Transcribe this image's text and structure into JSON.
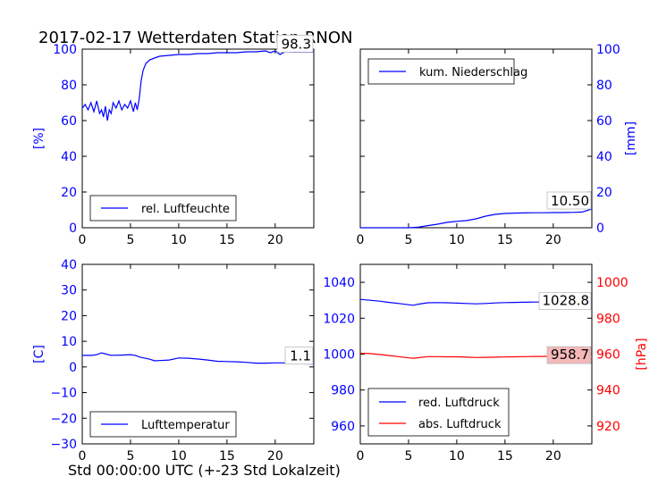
{
  "title": "2017-02-17 Wetterdaten Station RNON",
  "footer_xlabel": "Std 00:00:00 UTC (+-23 Std Lokalzeit)",
  "colors": {
    "blue": "#0000ff",
    "red": "#ff0000",
    "black": "#000000",
    "red_label_bg": "#f4b8b8"
  },
  "chart_data": [
    {
      "type": "line",
      "panel": "top-left",
      "ylabel": "[%]",
      "xlim": [
        0,
        24
      ],
      "ylim": [
        0,
        100
      ],
      "xticks": [
        0,
        5,
        10,
        15,
        20
      ],
      "yticks": [
        0,
        20,
        40,
        60,
        80,
        100
      ],
      "legend": "bottom-center",
      "value_label": "98.3",
      "series": [
        {
          "name": "rel. Luftfeuchte",
          "color": "blue",
          "x": [
            0,
            0.3,
            0.6,
            0.9,
            1.2,
            1.5,
            1.8,
            2.0,
            2.2,
            2.4,
            2.6,
            2.8,
            3.0,
            3.2,
            3.5,
            3.8,
            4.1,
            4.4,
            4.7,
            5.0,
            5.3,
            5.5,
            5.7,
            5.9,
            6.1,
            6.3,
            6.6,
            7.0,
            7.5,
            8,
            9,
            10,
            11,
            12,
            13,
            14,
            15,
            16,
            17,
            18,
            19,
            19.5,
            20,
            20.5,
            21,
            22,
            23,
            24
          ],
          "y": [
            67,
            69,
            66,
            70,
            65,
            71,
            64,
            66,
            62,
            68,
            60,
            66,
            64,
            70,
            67,
            71,
            66,
            69,
            67,
            71,
            65,
            70,
            66,
            72,
            82,
            88,
            92,
            94,
            95,
            96,
            96.5,
            97,
            97,
            97.5,
            97.5,
            98,
            98,
            98,
            98.5,
            98.5,
            99,
            98,
            99,
            97,
            98.5,
            98.3,
            98.3,
            98.3
          ]
        }
      ]
    },
    {
      "type": "line",
      "panel": "top-right",
      "ylabel": "[mm]",
      "xlim": [
        0,
        24
      ],
      "ylim": [
        0,
        100
      ],
      "xticks": [
        0,
        5,
        10,
        15,
        20
      ],
      "yticks": [
        0,
        20,
        40,
        60,
        80,
        100
      ],
      "legend": "top-center",
      "value_label": "10.50",
      "series": [
        {
          "name": "kum. Niederschlag",
          "color": "blue",
          "x": [
            0,
            5,
            6,
            7,
            8,
            9,
            10,
            11,
            12,
            13,
            14,
            15,
            16,
            17,
            18,
            19,
            20,
            21,
            22,
            23,
            24
          ],
          "y": [
            0,
            0,
            0.3,
            1.2,
            2,
            3,
            3.6,
            4,
            5,
            6.5,
            7.5,
            8,
            8.2,
            8.3,
            8.4,
            8.4,
            8.5,
            8.5,
            8.6,
            8.8,
            10.5
          ]
        }
      ]
    },
    {
      "type": "line",
      "panel": "bottom-left",
      "ylabel": "[C]",
      "xlim": [
        0,
        24
      ],
      "ylim": [
        -30,
        40
      ],
      "xticks": [
        0,
        5,
        10,
        15,
        20
      ],
      "yticks": [
        -30,
        -20,
        -10,
        0,
        10,
        20,
        30,
        40
      ],
      "legend": "bottom-center",
      "value_label": "1.1",
      "series": [
        {
          "name": "Lufttemperatur",
          "color": "blue",
          "x": [
            0,
            1,
            1.5,
            2,
            2.5,
            3,
            4,
            5,
            5.5,
            6,
            7,
            7.5,
            8,
            9,
            10,
            11,
            12,
            13,
            14,
            15,
            16,
            17,
            18,
            19,
            20,
            21,
            22,
            23,
            24
          ],
          "y": [
            4.5,
            4.5,
            4.8,
            5.5,
            5,
            4.5,
            4.6,
            4.8,
            4.5,
            3.8,
            3,
            2.4,
            2.5,
            2.7,
            3.5,
            3.4,
            3.1,
            2.7,
            2.2,
            2.1,
            2,
            1.8,
            1.5,
            1.5,
            1.6,
            1.6,
            1.4,
            1.2,
            1.1
          ]
        }
      ]
    },
    {
      "type": "line",
      "panel": "bottom-right",
      "ylabel": "[hPa]",
      "xlim": [
        0,
        24
      ],
      "ylim_left": [
        950,
        1050
      ],
      "ylim_right": [
        910,
        1010
      ],
      "xticks": [
        0,
        5,
        10,
        15,
        20
      ],
      "yticks_left": [
        960,
        980,
        1000,
        1020,
        1040
      ],
      "yticks_right": [
        920,
        940,
        960,
        980,
        1000
      ],
      "legend": "bottom-left",
      "series": [
        {
          "name": "red. Luftdruck",
          "color": "blue",
          "axis": "left",
          "value_label": "1028.8",
          "x": [
            0,
            1,
            2,
            3,
            4,
            5,
            5.5,
            6,
            7,
            8,
            9,
            10,
            11,
            12,
            13,
            14,
            15,
            16,
            17,
            18,
            19,
            20,
            21,
            22,
            23,
            24
          ],
          "y": [
            1030.5,
            1030,
            1029.5,
            1028.8,
            1028.2,
            1027.5,
            1027.2,
            1027.8,
            1028.6,
            1028.7,
            1028.6,
            1028.4,
            1028.2,
            1028.0,
            1028.2,
            1028.5,
            1028.7,
            1028.8,
            1028.9,
            1029.0,
            1029.0,
            1029.1,
            1029.0,
            1028.9,
            1028.8,
            1028.8
          ]
        },
        {
          "name": "abs. Luftdruck",
          "color": "red",
          "axis": "right",
          "value_label": "958.7",
          "x": [
            0,
            1,
            2,
            3,
            4,
            5,
            5.5,
            6,
            7,
            8,
            9,
            10,
            11,
            12,
            13,
            14,
            15,
            16,
            17,
            18,
            19,
            20,
            21,
            22,
            23,
            24
          ],
          "y": [
            960.5,
            960.3,
            959.8,
            959.2,
            958.6,
            957.9,
            957.7,
            958.0,
            958.6,
            958.6,
            958.5,
            958.5,
            958.3,
            958.1,
            958.2,
            958.3,
            958.4,
            958.5,
            958.6,
            958.7,
            958.7,
            958.8,
            958.8,
            958.7,
            958.7,
            958.7
          ]
        }
      ]
    }
  ]
}
